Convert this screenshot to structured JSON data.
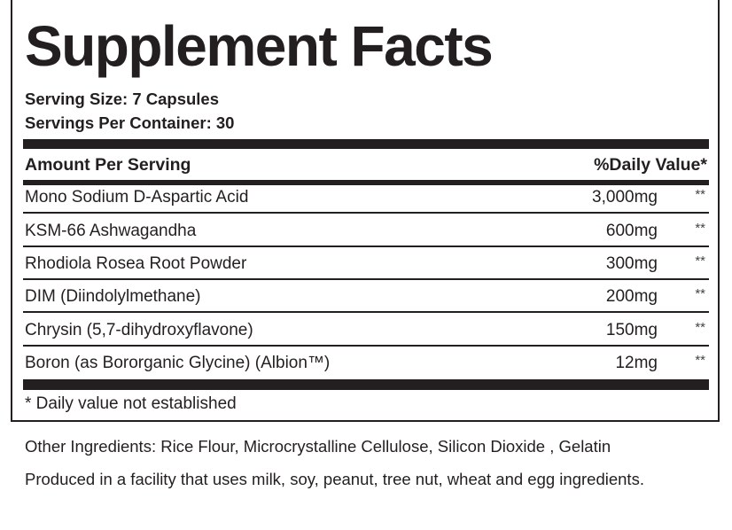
{
  "title": "Supplement Facts",
  "serving_size": "Serving Size: 7 Capsules",
  "servings_per_container": "Servings Per Container: 30",
  "header": {
    "amount": "Amount Per Serving",
    "daily_value": "%Daily Value*"
  },
  "ingredients": [
    {
      "name": "Mono Sodium D-Aspartic Acid",
      "amount": "3,000mg",
      "dv": "**"
    },
    {
      "name": "KSM-66 Ashwagandha",
      "amount": "600mg",
      "dv": "**"
    },
    {
      "name": "Rhodiola Rosea Root Powder",
      "amount": "300mg",
      "dv": "**"
    },
    {
      "name": "DIM (Diindolylmethane)",
      "amount": "200mg",
      "dv": "**"
    },
    {
      "name": "Chrysin (5,7-dihydroxyflavone)",
      "amount": "150mg",
      "dv": "**"
    },
    {
      "name": "Boron (as Bororganic Glycine) (Albion™)",
      "amount": "12mg",
      "dv": "**"
    }
  ],
  "footnote": "* Daily value not established",
  "other_ingredients": "Other Ingredients: Rice Flour, Microcrystalline Cellulose, Silicon Dioxide , Gelatin",
  "allergen": "Produced in a facility that uses milk, soy, peanut, tree nut, wheat and egg ingredients."
}
